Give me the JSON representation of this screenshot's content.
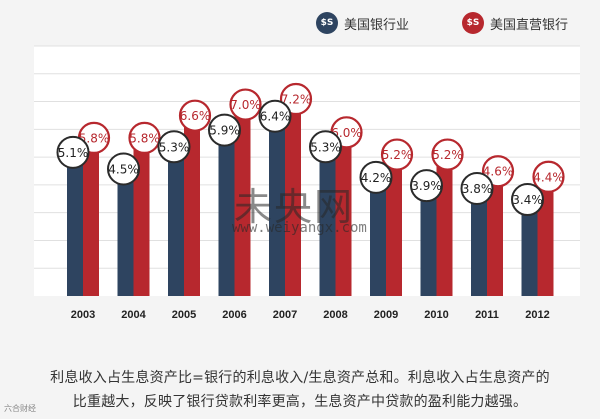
{
  "legend": {
    "boa_label": "美国银行业",
    "wf_label": "美国直营银行",
    "badge_text": "$S"
  },
  "colors": {
    "boa": "#2e4460",
    "wf": "#b7282e",
    "panel": "#ffffff",
    "grid": "#e0e0e0"
  },
  "chart_data": {
    "type": "bar",
    "title": "",
    "xlabel": "",
    "ylabel": "",
    "ylim": [
      0,
      9
    ],
    "categories": [
      "2003",
      "2004",
      "2005",
      "2006",
      "2007",
      "2008",
      "2009",
      "2010",
      "2011",
      "2012"
    ],
    "series": [
      {
        "name": "美国银行业",
        "values": [
          5.1,
          4.5,
          5.3,
          5.9,
          6.4,
          5.3,
          4.2,
          3.9,
          3.8,
          3.4
        ],
        "labels": [
          "5.1%",
          "4.5%",
          "5.3%",
          "5.9%",
          "6.4%",
          "5.3%",
          "4.2%",
          "3.9%",
          "3.8%",
          "3.4%"
        ]
      },
      {
        "name": "美国直营银行",
        "values": [
          5.8,
          5.8,
          6.6,
          7.0,
          7.2,
          6.0,
          5.2,
          5.2,
          4.6,
          4.4
        ],
        "labels": [
          "5.8%",
          "5.8%",
          "6.6%",
          "7.0%",
          "7.2%",
          "6.0%",
          "5.2%",
          "5.2%",
          "4.6%",
          "4.4%"
        ]
      }
    ],
    "grid": true
  },
  "caption": {
    "line1": "利息收入占生息资产比=银行的利息收入/生息资产总和。利息收入占生息资产的",
    "line2": "比重越大，反映了银行贷款利率更高，生息资产中贷款的盈利能力越强。"
  },
  "watermark": {
    "main": "未央网",
    "sub": "www.weiyangx.com"
  },
  "credit": "六合财经"
}
